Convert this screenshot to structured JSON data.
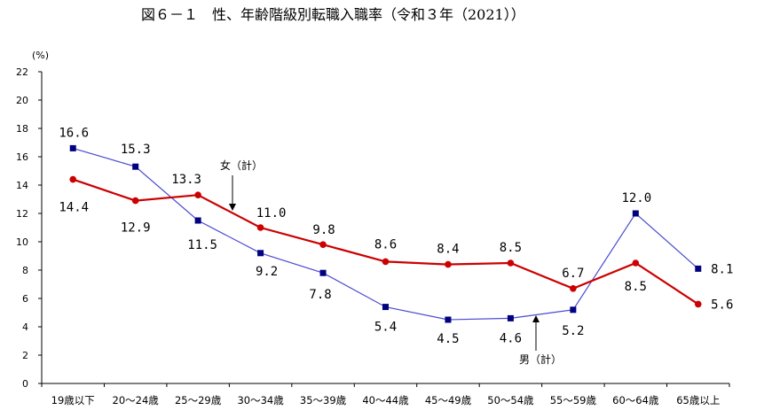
{
  "chart_data": {
    "type": "line",
    "title": "図６－１　性、年齢階級別転職入職率（令和３年（2021））",
    "ylabel": "(%)",
    "ylim": [
      0,
      22
    ],
    "yticks": [
      "0",
      "2",
      "4",
      "6",
      "8",
      "10",
      "12",
      "14",
      "16",
      "18",
      "20",
      "22"
    ],
    "categories": [
      "19歳以下",
      "20～24歳",
      "25～29歳",
      "30～34歳",
      "35～39歳",
      "40～44歳",
      "45～49歳",
      "50～54歳",
      "55～59歳",
      "60～64歳",
      "65歳以上"
    ],
    "series": [
      {
        "name": "女（計）",
        "color": "#cc0000",
        "marker": "circle",
        "values": [
          14.4,
          12.9,
          13.3,
          11.0,
          9.8,
          8.6,
          8.4,
          8.5,
          6.7,
          8.5,
          5.6
        ],
        "labels": [
          "14.4",
          "12.9",
          "13.3",
          "11.0",
          "9.8",
          "8.6",
          "8.4",
          "8.5",
          "6.7",
          "8.5",
          "5.6"
        ]
      },
      {
        "name": "男（計）",
        "color": "#000080",
        "line_color": "#4a4ad0",
        "marker": "square",
        "values": [
          16.6,
          15.3,
          11.5,
          9.2,
          7.8,
          5.4,
          4.5,
          4.6,
          5.2,
          12.0,
          8.1
        ],
        "labels": [
          "16.6",
          "15.3",
          "11.5",
          "9.2",
          "7.8",
          "5.4",
          "4.5",
          "4.6",
          "5.2",
          "12.0",
          "8.1"
        ]
      }
    ],
    "grid": false,
    "legend": "inline annotations with arrows"
  }
}
